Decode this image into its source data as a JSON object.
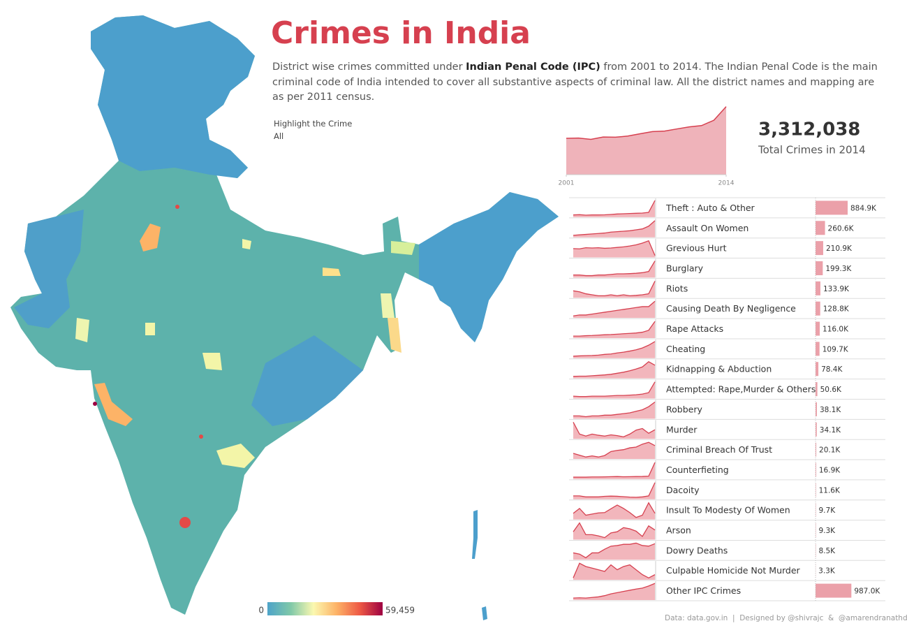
{
  "page": {
    "title": "Crimes in India",
    "subtitle_pre": "District wise crimes committed under ",
    "subtitle_bold": "Indian Penal Code (IPC)",
    "subtitle_post": " from 2001 to 2014. The Indian Penal Code is the main criminal code of India intended to cover all substantive aspects of criminal law. All the district names and mapping are as per 2011 census.",
    "filter_label": "Highlight the Crime",
    "filter_value": "All",
    "footer": "Data: data.gov.in  |  Designed by @shivrajc  &  @amarendranathd",
    "color_scale": {
      "min_label": "0",
      "max_label": "59,459",
      "colors": [
        "#4ea4c9",
        "#7fc8a9",
        "#fbf8b0",
        "#fdb367",
        "#ee5a45",
        "#9e0142"
      ]
    }
  },
  "chart_data": [
    {
      "type": "area",
      "x": [
        2001,
        2002,
        2003,
        2004,
        2005,
        2006,
        2007,
        2008,
        2009,
        2010,
        2011,
        2012,
        2013,
        2014
      ],
      "values": [
        1769308,
        1780330,
        1716120,
        1832015,
        1822602,
        1878293,
        1989673,
        2093379,
        2121345,
        2224831,
        2325575,
        2387188,
        2647722,
        3312038
      ],
      "xlim": [
        2001,
        2014
      ],
      "xticks": [
        2001,
        2014
      ],
      "ylim": [
        0,
        3400000
      ],
      "color": "#d6404f",
      "fill": "#efb3ba",
      "total": "3,312,038",
      "total_label": "Total Crimes in 2014"
    },
    {
      "type": "bar",
      "categories": [
        "Theft : Auto & Other",
        "Assault On Women",
        "Grevious Hurt",
        "Burglary",
        "Riots",
        "Causing Death By Negligence",
        "Rape Attacks",
        "Cheating",
        "Kidnapping & Abduction",
        "Attempted: Rape,Murder & Others",
        "Robbery",
        "Murder",
        "Criminal Breach Of Trust",
        "Counterfieting",
        "Dacoity",
        "Insult To Modesty Of Women",
        "Arson",
        "Dowry Deaths",
        "Culpable Homicide Not Murder",
        "Other IPC Crimes"
      ],
      "values": [
        884.9,
        260.6,
        210.9,
        199.3,
        133.9,
        128.8,
        116.0,
        109.7,
        78.4,
        50.6,
        38.1,
        34.1,
        20.1,
        16.9,
        11.6,
        9.7,
        9.3,
        8.5,
        3.3,
        987.0
      ],
      "value_labels": [
        "884.9K",
        "260.6K",
        "210.9K",
        "199.3K",
        "133.9K",
        "128.8K",
        "116.0K",
        "109.7K",
        "78.4K",
        "50.6K",
        "38.1K",
        "34.1K",
        "20.1K",
        "16.9K",
        "11.6K",
        "9.7K",
        "9.3K",
        "8.5K",
        "3.3K",
        "987.0K"
      ],
      "color": "#eba0a9",
      "trend_color": "#d6404f",
      "trend_fill": "#f2b6bc",
      "trends": [
        [
          270,
          280,
          260,
          270,
          270,
          275,
          290,
          310,
          320,
          330,
          340,
          350,
          380,
          884.9
        ],
        [
          100,
          105,
          110,
          115,
          120,
          125,
          135,
          140,
          145,
          150,
          160,
          170,
          200,
          260.6
        ],
        [
          450,
          440,
          480,
          470,
          480,
          460,
          470,
          490,
          510,
          540,
          580,
          640,
          720,
          210.9
        ],
        [
          80,
          80,
          75,
          75,
          80,
          80,
          85,
          90,
          90,
          92,
          95,
          100,
          110,
          199.3
        ],
        [
          85,
          80,
          70,
          65,
          60,
          60,
          65,
          60,
          65,
          60,
          62,
          65,
          70,
          133.9
        ],
        [
          50,
          55,
          55,
          60,
          65,
          70,
          75,
          80,
          85,
          90,
          95,
          100,
          100,
          128.8
        ],
        [
          40,
          40,
          42,
          43,
          45,
          47,
          48,
          50,
          52,
          54,
          56,
          60,
          70,
          116.0
        ],
        [
          30,
          32,
          33,
          34,
          36,
          40,
          42,
          48,
          52,
          58,
          65,
          75,
          90,
          109.7
        ],
        [
          25,
          26,
          26,
          28,
          30,
          32,
          35,
          40,
          45,
          52,
          60,
          70,
          95,
          78.4
        ],
        [
          10,
          9,
          9,
          10,
          10,
          10,
          11,
          12,
          12,
          13,
          14,
          16,
          20,
          50.6
        ],
        [
          20,
          20,
          19,
          20,
          20,
          21,
          21,
          22,
          23,
          24,
          26,
          28,
          32,
          38.1
        ],
        [
          36,
          33,
          32.5,
          33,
          32.7,
          32.5,
          32.8,
          32.6,
          32.3,
          33,
          34,
          34.4,
          33.2,
          34.1
        ],
        [
          18,
          17.5,
          17,
          17.3,
          17,
          17.4,
          18.5,
          18.8,
          19,
          19.5,
          19.7,
          20.5,
          21,
          20.1
        ],
        [
          2,
          2,
          2,
          2.2,
          2.2,
          2.3,
          2.5,
          2.6,
          2.4,
          2.5,
          2.6,
          2.7,
          3,
          16.9
        ],
        [
          5,
          5,
          4.5,
          4.5,
          4.5,
          4.8,
          4.9,
          4.8,
          4.6,
          4.4,
          4.3,
          4.5,
          5,
          11.6
        ],
        [
          9.7,
          11,
          9.2,
          9.5,
          9.8,
          9.9,
          10.9,
          11.9,
          11,
          9.9,
          8.6,
          9.2,
          12.5,
          9.7
        ],
        [
          9,
          10.5,
          8.5,
          8.5,
          8.3,
          8,
          8.8,
          9,
          9.7,
          9.5,
          9.1,
          8.2,
          10,
          9.3
        ],
        [
          7,
          6.8,
          6.2,
          7,
          7,
          7.6,
          8.1,
          8.2,
          8.4,
          8.4,
          8.6,
          8.2,
          8.1,
          8.5
        ],
        [
          3.1,
          4,
          3.8,
          3.7,
          3.6,
          3.5,
          3.9,
          3.6,
          3.8,
          3.9,
          3.6,
          3.3,
          3.1,
          3.3
        ],
        [
          500,
          510,
          500,
          520,
          540,
          580,
          640,
          680,
          720,
          760,
          800,
          830,
          900,
          987.0
        ]
      ]
    }
  ]
}
